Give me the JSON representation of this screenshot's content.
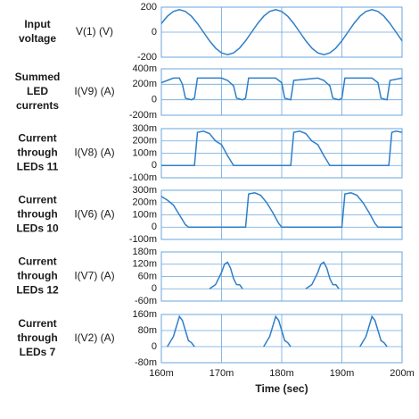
{
  "chart_data": [
    {
      "type": "line",
      "title": [
        "Input",
        "voltage"
      ],
      "ylabel": "V(1) (V)",
      "color": "#2f7fc8",
      "x": [
        0.16,
        0.161,
        0.162,
        0.163,
        0.164,
        0.165,
        0.166,
        0.167,
        0.168,
        0.169,
        0.17,
        0.171,
        0.172,
        0.173,
        0.174,
        0.175,
        0.176,
        0.177,
        0.178,
        0.179,
        0.18,
        0.181,
        0.182,
        0.183,
        0.184,
        0.185,
        0.186,
        0.187,
        0.188,
        0.189,
        0.19,
        0.191,
        0.192,
        0.193,
        0.194,
        0.195,
        0.196,
        0.197,
        0.198,
        0.199,
        0.2
      ],
      "values": [
        69,
        127,
        166,
        180,
        166,
        127,
        69,
        0,
        -69,
        -127,
        -166,
        -180,
        -166,
        -127,
        -69,
        0,
        69,
        127,
        166,
        180,
        166,
        127,
        69,
        0,
        -69,
        -127,
        -166,
        -180,
        -166,
        -127,
        -69,
        0,
        69,
        127,
        166,
        180,
        166,
        127,
        69,
        0,
        -69
      ],
      "xlim": [
        0.16,
        0.2
      ],
      "ylim": [
        -200,
        200
      ],
      "yticks": [
        200,
        0,
        -200
      ],
      "grid": true
    },
    {
      "type": "line",
      "title": [
        "Summed",
        "LED",
        "currents"
      ],
      "ylabel": "I(V9) (A)",
      "color": "#2f7fc8",
      "x": [
        0.16,
        0.161,
        0.162,
        0.163,
        0.1635,
        0.164,
        0.165,
        0.1655,
        0.166,
        0.17,
        0.171,
        0.172,
        0.1725,
        0.1735,
        0.174,
        0.1745,
        0.179,
        0.18,
        0.1805,
        0.1815,
        0.182,
        0.186,
        0.187,
        0.188,
        0.1885,
        0.1895,
        0.19,
        0.1905,
        0.195,
        0.196,
        0.1965,
        0.1975,
        0.198,
        0.2
      ],
      "values": [
        0.22,
        0.25,
        0.28,
        0.28,
        0.2,
        0.02,
        0,
        0.02,
        0.28,
        0.28,
        0.25,
        0.18,
        0.02,
        0,
        0.02,
        0.28,
        0.28,
        0.22,
        0.02,
        0,
        0.25,
        0.28,
        0.25,
        0.18,
        0.02,
        0,
        0.02,
        0.28,
        0.28,
        0.22,
        0.02,
        0,
        0.25,
        0.28
      ],
      "xlim": [
        0.16,
        0.2
      ],
      "ylim": [
        -0.2,
        0.4
      ],
      "yticks": [
        {
          "value": 0.4,
          "label": "400m"
        },
        {
          "value": 0.2,
          "label": "200m"
        },
        0,
        {
          "value": -0.2,
          "label": "-200m"
        }
      ],
      "grid": true
    },
    {
      "type": "line",
      "title": [
        "Current",
        "through",
        "LEDs 11"
      ],
      "ylabel": "I(V8) (A)",
      "color": "#2f7fc8",
      "x": [
        0.16,
        0.1655,
        0.166,
        0.167,
        0.168,
        0.169,
        0.17,
        0.171,
        0.172,
        0.1815,
        0.182,
        0.183,
        0.184,
        0.185,
        0.186,
        0.187,
        0.188,
        0.1978,
        0.1983,
        0.199,
        0.2
      ],
      "values": [
        0,
        0,
        0.27,
        0.28,
        0.26,
        0.2,
        0.17,
        0.08,
        0,
        0,
        0.27,
        0.28,
        0.26,
        0.2,
        0.17,
        0.08,
        0,
        0,
        0.27,
        0.28,
        0.27
      ],
      "xlim": [
        0.16,
        0.2
      ],
      "ylim": [
        -0.1,
        0.3
      ],
      "yticks": [
        {
          "value": 0.3,
          "label": "300m"
        },
        {
          "value": 0.2,
          "label": "200m"
        },
        {
          "value": 0.1,
          "label": "100m"
        },
        0,
        {
          "value": -0.1,
          "label": "-100m"
        }
      ],
      "grid": true
    },
    {
      "type": "line",
      "title": [
        "Current",
        "through",
        "LEDs 10"
      ],
      "ylabel": "I(V6) (A)",
      "color": "#2f7fc8",
      "x": [
        0.16,
        0.161,
        0.162,
        0.163,
        0.164,
        0.1645,
        0.174,
        0.1745,
        0.1755,
        0.1765,
        0.1775,
        0.1785,
        0.1795,
        0.18,
        0.19,
        0.1905,
        0.1915,
        0.1925,
        0.1935,
        0.1945,
        0.1955,
        0.196,
        0.2
      ],
      "values": [
        0.25,
        0.22,
        0.18,
        0.1,
        0.02,
        0,
        0,
        0.27,
        0.28,
        0.26,
        0.2,
        0.12,
        0.03,
        0,
        0,
        0.27,
        0.28,
        0.26,
        0.2,
        0.12,
        0.03,
        0,
        0
      ],
      "xlim": [
        0.16,
        0.2
      ],
      "ylim": [
        -0.1,
        0.3
      ],
      "yticks": [
        {
          "value": 0.3,
          "label": "300m"
        },
        {
          "value": 0.2,
          "label": "200m"
        },
        {
          "value": 0.1,
          "label": "100m"
        },
        0,
        {
          "value": -0.1,
          "label": "-100m"
        }
      ],
      "grid": true
    },
    {
      "type": "line",
      "title": [
        "Current",
        "through",
        "LEDs 12"
      ],
      "ylabel": "I(V7) (A)",
      "color": "#2f7fc8",
      "x": [
        0.168,
        0.169,
        0.17,
        0.1705,
        0.171,
        0.1715,
        0.172,
        0.1725,
        0.173,
        0.1735,
        0.18,
        0.184,
        0.185,
        0.186,
        0.1865,
        0.187,
        0.1875,
        0.188,
        0.1885,
        0.189,
        0.1895
      ],
      "values": [
        0,
        0.02,
        0.08,
        0.12,
        0.13,
        0.1,
        0.05,
        0.02,
        0.02,
        0,
        null,
        0,
        0.02,
        0.08,
        0.12,
        0.13,
        0.1,
        0.05,
        0.02,
        0.02,
        0
      ],
      "xlim": [
        0.16,
        0.2
      ],
      "ylim": [
        -0.06,
        0.18
      ],
      "yticks": [
        {
          "value": 0.18,
          "label": "180m"
        },
        {
          "value": 0.12,
          "label": "120m"
        },
        {
          "value": 0.06,
          "label": "60m"
        },
        0,
        {
          "value": -0.06,
          "label": "-60m"
        }
      ],
      "grid": true
    },
    {
      "type": "line",
      "title": [
        "Current",
        "through",
        "LEDs 7"
      ],
      "ylabel": "I(V2) (A)",
      "xlabel": "Time (sec)",
      "color": "#2f7fc8",
      "x": [
        0.161,
        0.162,
        0.1625,
        0.163,
        0.1635,
        0.164,
        0.1645,
        0.165,
        0.1655,
        0.17,
        0.177,
        0.178,
        0.1785,
        0.179,
        0.1795,
        0.18,
        0.1805,
        0.181,
        0.1815,
        0.19,
        0.193,
        0.194,
        0.1945,
        0.195,
        0.1955,
        0.196,
        0.1965,
        0.197,
        0.1975
      ],
      "values": [
        0,
        0.05,
        0.1,
        0.15,
        0.13,
        0.08,
        0.03,
        0.02,
        0,
        null,
        0,
        0.05,
        0.1,
        0.15,
        0.13,
        0.08,
        0.03,
        0.02,
        0,
        null,
        0,
        0.05,
        0.1,
        0.15,
        0.13,
        0.08,
        0.03,
        0.02,
        0
      ],
      "xlim": [
        0.16,
        0.2
      ],
      "ylim": [
        -0.08,
        0.16
      ],
      "yticks": [
        {
          "value": 0.16,
          "label": "160m"
        },
        {
          "value": 0.08,
          "label": "80m"
        },
        0,
        {
          "value": -0.08,
          "label": "-80m"
        }
      ],
      "xticks": [
        {
          "value": 0.16,
          "label": "160m"
        },
        {
          "value": 0.17,
          "label": "170m"
        },
        {
          "value": 0.18,
          "label": "180m"
        },
        {
          "value": 0.19,
          "label": "190m"
        },
        {
          "value": 0.2,
          "label": "200m"
        }
      ],
      "grid": true
    }
  ]
}
